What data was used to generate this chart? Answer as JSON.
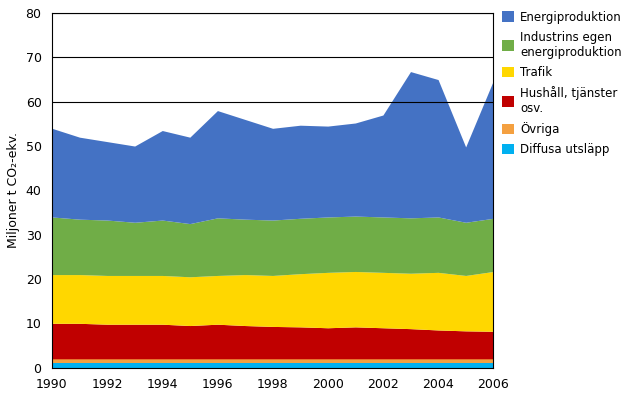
{
  "years": [
    1990,
    1991,
    1992,
    1993,
    1994,
    1995,
    1996,
    1997,
    1998,
    1999,
    2000,
    2001,
    2002,
    2003,
    2004,
    2005,
    2006
  ],
  "diffusa": [
    1.0,
    1.0,
    1.0,
    1.0,
    1.0,
    1.0,
    1.0,
    1.0,
    1.0,
    1.0,
    1.0,
    1.0,
    1.0,
    1.0,
    1.0,
    1.0,
    1.0
  ],
  "ovriga": [
    1.0,
    1.0,
    1.0,
    1.0,
    1.0,
    1.0,
    1.0,
    1.0,
    1.0,
    1.0,
    1.0,
    1.0,
    1.0,
    1.0,
    1.0,
    1.0,
    1.0
  ],
  "hushall": [
    8.0,
    8.0,
    7.8,
    7.8,
    7.8,
    7.5,
    7.8,
    7.5,
    7.3,
    7.2,
    7.0,
    7.2,
    7.0,
    6.8,
    6.5,
    6.3,
    6.2
  ],
  "trafik": [
    11.0,
    11.0,
    11.0,
    11.0,
    11.0,
    11.0,
    11.0,
    11.5,
    11.5,
    12.0,
    12.5,
    12.5,
    12.5,
    12.5,
    13.0,
    12.5,
    13.5
  ],
  "industri": [
    13.0,
    12.5,
    12.5,
    12.0,
    12.5,
    12.0,
    13.0,
    12.5,
    12.5,
    12.5,
    12.5,
    12.5,
    12.5,
    12.5,
    12.5,
    12.0,
    12.0
  ],
  "energi": [
    20.0,
    18.5,
    17.7,
    17.2,
    20.2,
    19.5,
    24.2,
    22.5,
    20.7,
    21.0,
    20.5,
    21.0,
    23.0,
    33.0,
    31.0,
    17.0,
    31.0
  ],
  "colors": {
    "diffusa": "#00B0F0",
    "ovriga": "#F4A040",
    "hushall": "#C00000",
    "trafik": "#FFD700",
    "industri": "#70AD47",
    "energi": "#4472C4"
  },
  "labels": {
    "energi": "Energiproduktion",
    "industri": "Industrins egen\nenergiproduktion",
    "trafik": "Trafik",
    "hushall": "Hushåll, tjänster\nosv.",
    "ovriga": "Övriga",
    "diffusa": "Diffusa utsläpp"
  },
  "ylabel": "Miljoner t CO₂-ekv.",
  "ylim": [
    0,
    80
  ],
  "yticks": [
    0,
    10,
    20,
    30,
    40,
    50,
    60,
    70,
    80
  ],
  "grid_lines": [
    60,
    70,
    80
  ],
  "xticks": [
    1990,
    1992,
    1994,
    1996,
    1998,
    2000,
    2002,
    2004,
    2006
  ]
}
